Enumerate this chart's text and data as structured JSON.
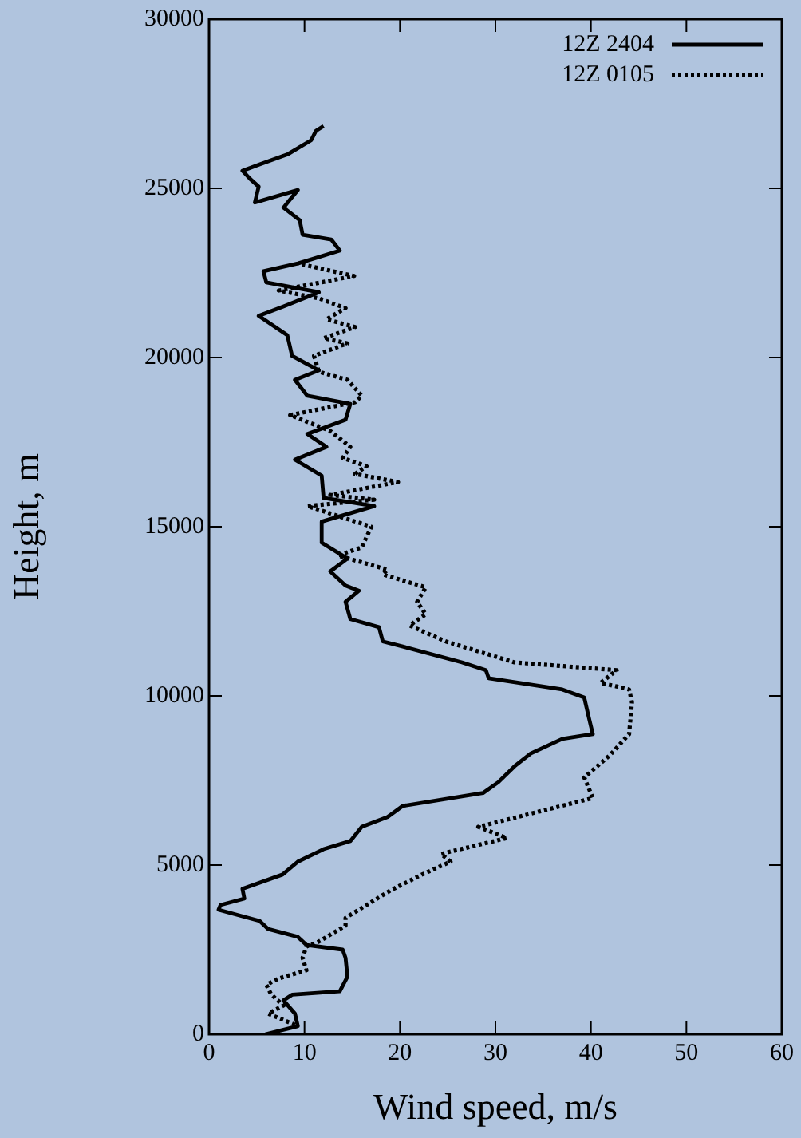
{
  "chart_data": {
    "type": "line",
    "xlabel": "Wind speed, m/s",
    "ylabel": "Height, m",
    "xlim": [
      0,
      60
    ],
    "xticks": [
      0,
      10,
      20,
      30,
      40,
      50,
      60
    ],
    "ylim": [
      0,
      30000
    ],
    "yticks": [
      0,
      5000,
      10000,
      15000,
      20000,
      25000,
      30000
    ],
    "grid": false,
    "legend": "top right",
    "marker": "none",
    "series": [
      {
        "name": "12Z 2404",
        "color": "#000000",
        "line_style": "solid",
        "x": [
          5.9,
          9.3,
          9.0,
          7.8,
          8.7,
          13.7,
          14.5,
          14.3,
          14.0,
          10.2,
          9.3,
          6.2,
          5.3,
          1.0,
          1.2,
          3.7,
          3.5,
          7.7,
          9.3,
          12.0,
          14.8,
          16.0,
          18.7,
          20.3,
          28.7,
          30.3,
          32.0,
          33.7,
          37.0,
          40.2,
          39.8,
          39.3,
          37.0,
          29.3,
          29.0,
          26.5,
          20.3,
          18.2,
          17.8,
          14.8,
          14.3,
          15.7,
          14.3,
          12.7,
          14.5,
          11.8,
          11.8,
          17.3,
          12.0,
          11.8,
          9.0,
          12.3,
          10.3,
          14.3,
          14.8,
          10.3,
          9.0,
          11.5,
          8.7,
          8.2,
          5.2,
          7.8,
          11.5,
          6.0,
          5.7,
          9.3,
          13.7,
          12.8,
          9.8,
          9.5,
          7.8,
          9.3,
          4.8,
          5.2,
          4.3,
          3.5,
          5.3,
          8.2,
          10.7,
          11.2,
          12.0
        ],
        "values": [
          0,
          240,
          610,
          1000,
          1170,
          1270,
          1700,
          2260,
          2500,
          2640,
          2880,
          3110,
          3350,
          3680,
          3820,
          4010,
          4300,
          4720,
          5100,
          5470,
          5710,
          6130,
          6420,
          6750,
          7130,
          7450,
          7920,
          8300,
          8730,
          8870,
          9340,
          9950,
          10190,
          10520,
          10760,
          10990,
          11460,
          11610,
          12030,
          12270,
          12780,
          13110,
          13260,
          13680,
          14060,
          14530,
          15150,
          15610,
          15850,
          16510,
          16980,
          17360,
          17740,
          18160,
          18630,
          18870,
          19340,
          19620,
          20050,
          20660,
          21230,
          21510,
          21930,
          22220,
          22550,
          22780,
          23160,
          23490,
          23630,
          24060,
          24430,
          24950,
          24580,
          25050,
          25280,
          25520,
          25710,
          26000,
          26420,
          26700,
          26840
        ]
      },
      {
        "name": "12Z 0105",
        "color": "#000000",
        "line_style": "dotted",
        "x": [
          9.0,
          6.2,
          7.8,
          6.5,
          6.0,
          7.3,
          10.2,
          9.8,
          10.2,
          11.5,
          14.3,
          14.3,
          16.5,
          19.0,
          22.3,
          25.3,
          24.3,
          31.2,
          28.2,
          40.2,
          39.3,
          42.0,
          44.0,
          44.3,
          44.0,
          42.7,
          41.0,
          42.7,
          32.0,
          24.8,
          21.0,
          22.7,
          21.8,
          22.7,
          18.2,
          18.7,
          13.5,
          16.0,
          17.0,
          10.3,
          17.3,
          12.7,
          19.8,
          15.3,
          16.5,
          14.0,
          14.8,
          12.7,
          8.5,
          15.3,
          16.0,
          14.5,
          11.5,
          11.0,
          14.5,
          12.0,
          15.3,
          12.3,
          14.3,
          11.5,
          7.3,
          15.2,
          9.3
        ],
        "values": [
          280,
          610,
          850,
          1180,
          1460,
          1650,
          1890,
          2260,
          2590,
          2740,
          3210,
          3440,
          3820,
          4250,
          4720,
          5100,
          5330,
          5800,
          6130,
          6980,
          7590,
          8250,
          8870,
          9810,
          10190,
          10280,
          10380,
          10760,
          10990,
          11610,
          12080,
          12410,
          12780,
          13210,
          13590,
          13730,
          14150,
          14390,
          15000,
          15610,
          15800,
          15940,
          16320,
          16560,
          16790,
          17030,
          17360,
          17830,
          18300,
          18680,
          18870,
          19340,
          19580,
          20050,
          20420,
          20570,
          20900,
          21130,
          21460,
          21750,
          21980,
          22410,
          22780
        ]
      }
    ]
  }
}
